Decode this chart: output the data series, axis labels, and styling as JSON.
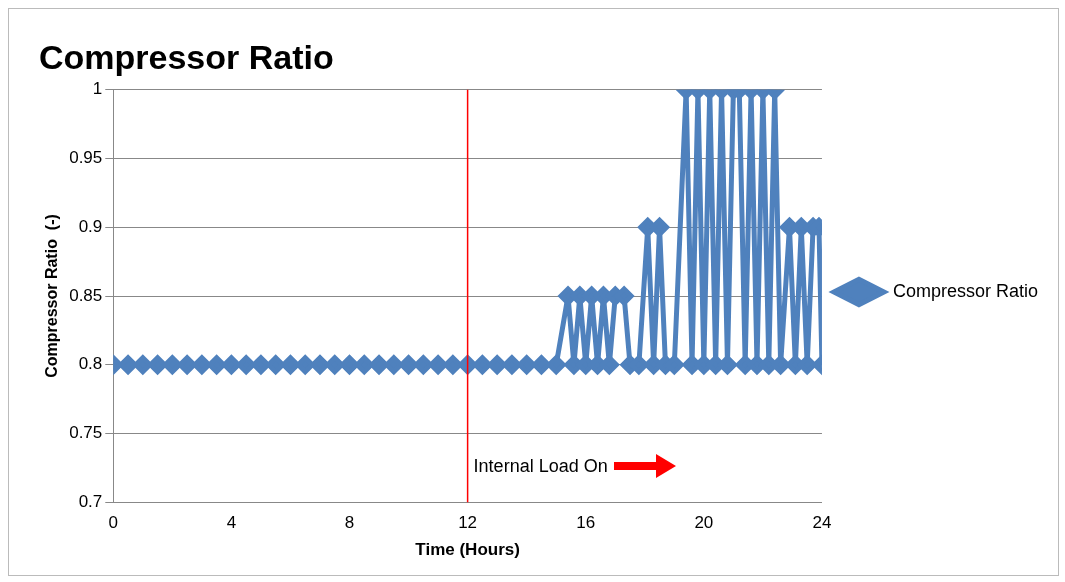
{
  "chart_data": {
    "type": "line",
    "title": "Compressor Ratio",
    "xlabel": "Time (Hours)",
    "ylabel": "Compressor Ratio  (-)",
    "annotations": [
      "Internal Load On"
    ],
    "series": [
      {
        "name": "Compressor Ratio",
        "color": "#4f81bd",
        "x": [
          0,
          0.5,
          1,
          1.5,
          2,
          2.5,
          3,
          3.5,
          4,
          4.5,
          5,
          5.5,
          6,
          6.5,
          7,
          7.5,
          8,
          8.5,
          9,
          9.5,
          10,
          10.5,
          11,
          11.5,
          12,
          12.5,
          13,
          13.5,
          14,
          14.5,
          15,
          15.4,
          15.6,
          15.8,
          16,
          16.2,
          16.4,
          16.6,
          16.8,
          17,
          17.3,
          17.5,
          17.8,
          18.1,
          18.3,
          18.5,
          18.7,
          19,
          19.4,
          19.6,
          19.8,
          20,
          20.2,
          20.4,
          20.6,
          20.8,
          21,
          21.2,
          21.4,
          21.6,
          21.8,
          22,
          22.2,
          22.4,
          22.6,
          22.9,
          23.1,
          23.3,
          23.5,
          23.7,
          23.9,
          24
        ],
        "values": [
          0.8,
          0.8,
          0.8,
          0.8,
          0.8,
          0.8,
          0.8,
          0.8,
          0.8,
          0.8,
          0.8,
          0.8,
          0.8,
          0.8,
          0.8,
          0.8,
          0.8,
          0.8,
          0.8,
          0.8,
          0.8,
          0.8,
          0.8,
          0.8,
          0.8,
          0.8,
          0.8,
          0.8,
          0.8,
          0.8,
          0.8,
          0.85,
          0.8,
          0.85,
          0.8,
          0.85,
          0.8,
          0.85,
          0.8,
          0.85,
          0.85,
          0.8,
          0.8,
          0.9,
          0.8,
          0.9,
          0.8,
          0.8,
          1,
          0.8,
          1,
          0.8,
          1,
          0.8,
          1,
          0.8,
          1,
          1,
          0.8,
          1,
          0.8,
          1,
          0.8,
          1,
          0.8,
          0.9,
          0.8,
          0.9,
          0.8,
          0.9,
          0.9,
          0.8
        ]
      }
    ],
    "xlim": [
      0,
      24
    ],
    "xticks": [
      0,
      4,
      8,
      12,
      16,
      20,
      24
    ],
    "ylim": [
      0.7,
      1
    ],
    "yticks": [
      0.7,
      0.75,
      0.8,
      0.85,
      0.9,
      0.95,
      1
    ],
    "grid": "y",
    "legend": "right",
    "marker": "diamond",
    "line_style": "solid",
    "ref_lines": [
      {
        "axis": "x",
        "value": 12,
        "color": "#ff0000"
      }
    ]
  }
}
